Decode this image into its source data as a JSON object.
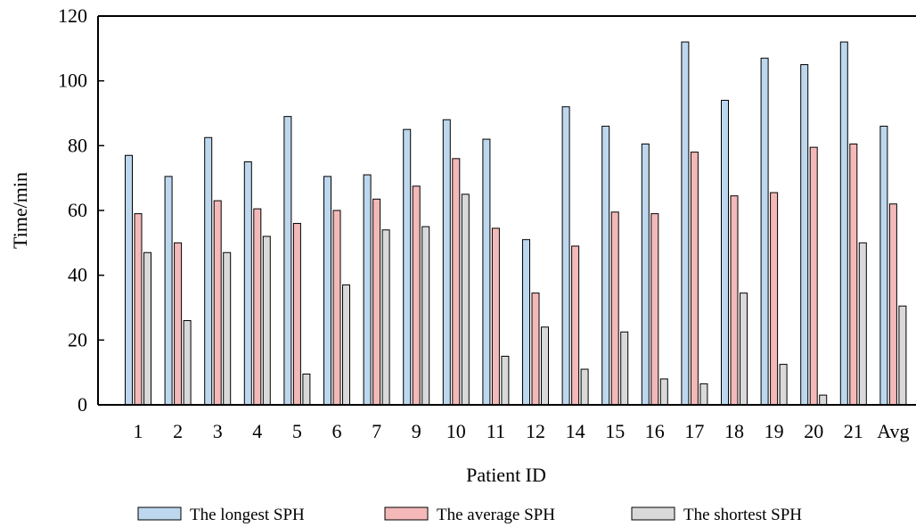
{
  "chart_data": {
    "type": "bar",
    "xlabel": "Patient ID",
    "ylabel": "Time/min",
    "ylim": [
      0,
      120
    ],
    "yticks": [
      0,
      20,
      40,
      60,
      80,
      100,
      120
    ],
    "grid": false,
    "legend_position": "bottom",
    "categories": [
      "1",
      "2",
      "3",
      "4",
      "5",
      "6",
      "7",
      "9",
      "10",
      "11",
      "12",
      "14",
      "15",
      "16",
      "17",
      "18",
      "19",
      "20",
      "21",
      "Avg"
    ],
    "series": [
      {
        "name": "The longest SPH",
        "color": "#bdd7ee",
        "values": [
          77,
          70.5,
          82.5,
          75,
          89,
          70.5,
          71,
          85,
          88,
          82,
          51,
          92,
          86,
          80.5,
          112,
          94,
          107,
          105,
          112,
          86
        ]
      },
      {
        "name": "The average SPH",
        "color": "#f4b8b8",
        "values": [
          59,
          50,
          63,
          60.5,
          56,
          60,
          63.5,
          67.5,
          76,
          54.5,
          34.5,
          49,
          59.5,
          59,
          78,
          64.5,
          65.5,
          79.5,
          80.5,
          62
        ]
      },
      {
        "name": "The shortest SPH",
        "color": "#d9d9d9",
        "values": [
          47,
          26,
          47,
          52,
          9.5,
          37,
          54,
          55,
          65,
          15,
          24,
          11,
          22.5,
          8,
          6.5,
          34.5,
          12.5,
          3,
          50,
          30.5
        ]
      }
    ]
  }
}
